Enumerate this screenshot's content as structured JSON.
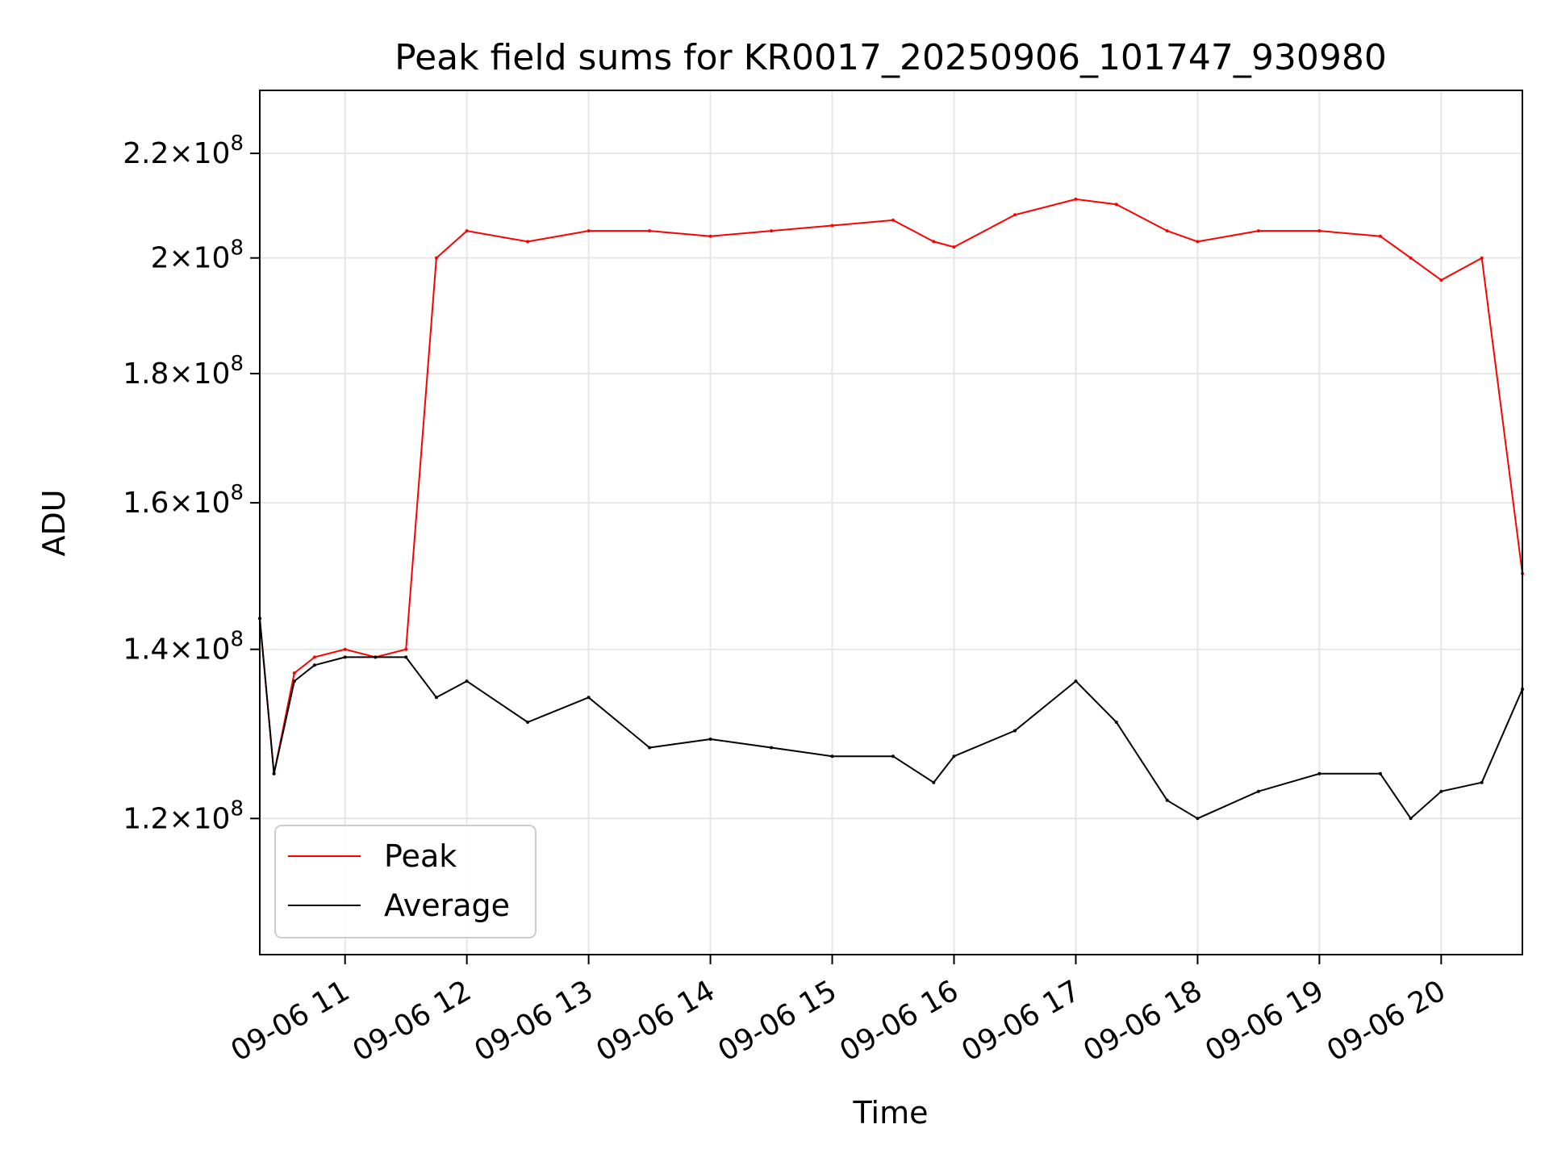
{
  "chart_data": {
    "type": "line",
    "title": "Peak field sums for KR0017_20250906_101747_930980",
    "xlabel": "Time",
    "ylabel": "ADU",
    "y_scale": "log",
    "xlim": [
      "2025-09-06 10:18",
      "2025-09-06 20:40"
    ],
    "ylim": [
      106000000,
      233000000
    ],
    "grid": true,
    "legend_position": "lower-left",
    "x_ticks": [
      {
        "value": "2025-09-06 11:00",
        "label": "09-06 11"
      },
      {
        "value": "2025-09-06 12:00",
        "label": "09-06 12"
      },
      {
        "value": "2025-09-06 13:00",
        "label": "09-06 13"
      },
      {
        "value": "2025-09-06 14:00",
        "label": "09-06 14"
      },
      {
        "value": "2025-09-06 15:00",
        "label": "09-06 15"
      },
      {
        "value": "2025-09-06 16:00",
        "label": "09-06 16"
      },
      {
        "value": "2025-09-06 17:00",
        "label": "09-06 17"
      },
      {
        "value": "2025-09-06 18:00",
        "label": "09-06 18"
      },
      {
        "value": "2025-09-06 19:00",
        "label": "09-06 19"
      },
      {
        "value": "2025-09-06 20:00",
        "label": "09-06 20"
      }
    ],
    "y_ticks": [
      {
        "value": 120000000,
        "mantissa": "1.2",
        "exponent": "8"
      },
      {
        "value": 140000000,
        "mantissa": "1.4",
        "exponent": "8"
      },
      {
        "value": 160000000,
        "mantissa": "1.6",
        "exponent": "8"
      },
      {
        "value": 180000000,
        "mantissa": "1.8",
        "exponent": "8"
      },
      {
        "value": 200000000,
        "mantissa": "2",
        "exponent": "8"
      },
      {
        "value": 220000000,
        "mantissa": "2.2",
        "exponent": "8"
      }
    ],
    "x": [
      "2025-09-06 10:18",
      "2025-09-06 10:25",
      "2025-09-06 10:35",
      "2025-09-06 10:45",
      "2025-09-06 11:00",
      "2025-09-06 11:15",
      "2025-09-06 11:30",
      "2025-09-06 11:45",
      "2025-09-06 12:00",
      "2025-09-06 12:30",
      "2025-09-06 13:00",
      "2025-09-06 13:30",
      "2025-09-06 14:00",
      "2025-09-06 14:30",
      "2025-09-06 15:00",
      "2025-09-06 15:30",
      "2025-09-06 15:50",
      "2025-09-06 16:00",
      "2025-09-06 16:30",
      "2025-09-06 17:00",
      "2025-09-06 17:20",
      "2025-09-06 17:45",
      "2025-09-06 18:00",
      "2025-09-06 18:30",
      "2025-09-06 19:00",
      "2025-09-06 19:30",
      "2025-09-06 19:45",
      "2025-09-06 20:00",
      "2025-09-06 20:20",
      "2025-09-06 20:40"
    ],
    "series": [
      {
        "name": "Peak",
        "color": "#ff0000",
        "values": [
          144000000,
          125000000,
          137000000,
          139000000,
          140000000,
          139000000,
          140000000,
          200000000,
          205000000,
          203000000,
          205000000,
          205000000,
          204000000,
          205000000,
          206000000,
          207000000,
          203000000,
          202000000,
          208000000,
          211000000,
          210000000,
          205000000,
          203000000,
          205000000,
          205000000,
          204000000,
          200000000,
          196000000,
          200000000,
          150000000
        ]
      },
      {
        "name": "Average",
        "color": "#000000",
        "values": [
          144000000,
          125000000,
          136000000,
          138000000,
          139000000,
          139000000,
          139000000,
          134000000,
          136000000,
          131000000,
          134000000,
          128000000,
          129000000,
          128000000,
          127000000,
          127000000,
          124000000,
          127000000,
          130000000,
          136000000,
          131000000,
          122000000,
          120000000,
          123000000,
          125000000,
          125000000,
          120000000,
          123000000,
          124000000,
          135000000
        ]
      }
    ]
  }
}
